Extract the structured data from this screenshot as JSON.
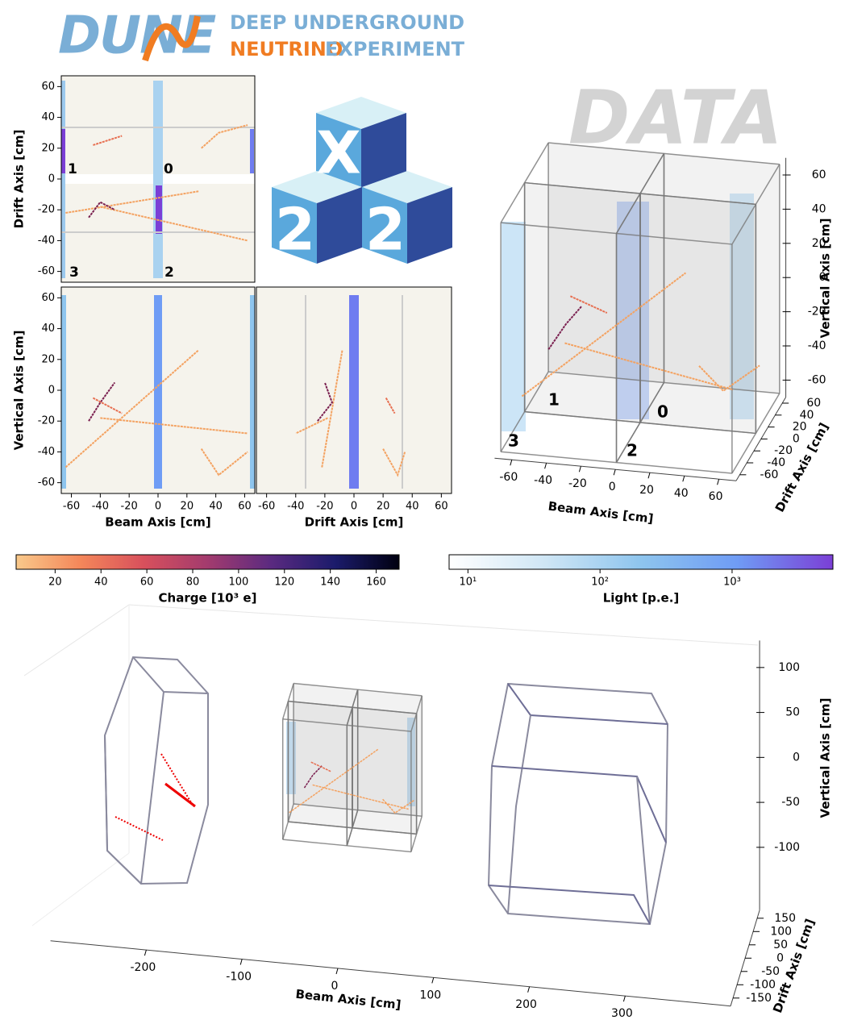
{
  "header": {
    "logo": "DUNE",
    "line1": "DEEP UNDERGROUND",
    "line2_a": "NEUTRINO",
    "line2_b": "EXPERIMENT"
  },
  "badge": "DATA",
  "cube_labels": [
    "X",
    "2",
    "2"
  ],
  "chart_data": [
    {
      "type": "projection",
      "ylabel": "Drift Axis [cm]",
      "xlim": [
        -67,
        67
      ],
      "ylim": [
        -67,
        67
      ],
      "yticks": [
        -60,
        -40,
        -20,
        0,
        20,
        40,
        60
      ],
      "module_labels": [
        "1",
        "0",
        "3",
        "2"
      ],
      "tracks": [
        {
          "color": "#f4a261",
          "x": [
            -64,
            28
          ],
          "y": [
            -22,
            -8
          ]
        },
        {
          "color": "#f4a261",
          "x": [
            -40,
            62
          ],
          "y": [
            -18,
            -40
          ]
        },
        {
          "color": "#f4a261",
          "x": [
            30,
            42,
            62
          ],
          "y": [
            20,
            30,
            35
          ]
        },
        {
          "color": "#7a1f4f",
          "x": [
            -48,
            -40,
            -30
          ],
          "y": [
            -25,
            -15,
            -20
          ]
        },
        {
          "color": "#e76f51",
          "x": [
            -45,
            -25
          ],
          "y": [
            22,
            28
          ]
        }
      ]
    },
    {
      "type": "projection",
      "xlabel": "Beam Axis [cm]",
      "ylabel": "Vertical Axis [cm]",
      "xlim": [
        -67,
        67
      ],
      "ylim": [
        -67,
        67
      ],
      "xticks": [
        -60,
        -40,
        -20,
        0,
        20,
        40,
        60
      ],
      "yticks": [
        -60,
        -40,
        -20,
        0,
        20,
        40,
        60
      ],
      "tracks": [
        {
          "color": "#f4a261",
          "x": [
            -64,
            28
          ],
          "y": [
            -50,
            26
          ]
        },
        {
          "color": "#f4a261",
          "x": [
            -40,
            62
          ],
          "y": [
            -18,
            -28
          ]
        },
        {
          "color": "#f4a261",
          "x": [
            30,
            42,
            62
          ],
          "y": [
            -38,
            -55,
            -40
          ]
        },
        {
          "color": "#7a1f4f",
          "x": [
            -48,
            -40,
            -30
          ],
          "y": [
            -20,
            -8,
            5
          ]
        },
        {
          "color": "#e76f51",
          "x": [
            -45,
            -25
          ],
          "y": [
            -5,
            -15
          ]
        }
      ]
    },
    {
      "type": "projection",
      "xlabel": "Drift Axis [cm]",
      "xlim": [
        -67,
        67
      ],
      "ylim": [
        -67,
        67
      ],
      "xticks": [
        -60,
        -40,
        -20,
        0,
        20,
        40,
        60
      ],
      "tracks": [
        {
          "color": "#f4a261",
          "x": [
            -22,
            -8
          ],
          "y": [
            -50,
            26
          ]
        },
        {
          "color": "#f4a261",
          "x": [
            -18,
            -40
          ],
          "y": [
            -18,
            -28
          ]
        },
        {
          "color": "#f4a261",
          "x": [
            20,
            30,
            35
          ],
          "y": [
            -38,
            -55,
            -40
          ]
        },
        {
          "color": "#7a1f4f",
          "x": [
            -25,
            -15,
            -20
          ],
          "y": [
            -20,
            -8,
            5
          ]
        },
        {
          "color": "#e76f51",
          "x": [
            22,
            28
          ],
          "y": [
            -5,
            -15
          ]
        }
      ]
    },
    {
      "type": "scatter3d",
      "xlabel": "Beam Axis [cm]",
      "ylabel": "Drift Axis [cm]",
      "zlabel": "Vertical Axis [cm]",
      "xlim": [
        -70,
        70
      ],
      "ylim": [
        -70,
        70
      ],
      "zlim": [
        -70,
        70
      ],
      "xticks": [
        -60,
        -40,
        -20,
        0,
        20,
        40,
        60
      ],
      "yticks": [
        -60,
        -40,
        -20,
        0,
        20,
        40,
        60
      ],
      "zticks": [
        -60,
        -40,
        -20,
        0,
        20,
        40,
        60
      ],
      "module_labels": [
        "1",
        "0",
        "3",
        "2"
      ],
      "tracks": [
        {
          "color": "#f4a261",
          "x": [
            -64,
            28
          ],
          "y": [
            -22,
            -8
          ],
          "z": [
            -50,
            26
          ]
        },
        {
          "color": "#f4a261",
          "x": [
            -40,
            62
          ],
          "y": [
            -18,
            -40
          ],
          "z": [
            -18,
            -28
          ]
        },
        {
          "color": "#f4a261",
          "x": [
            30,
            42,
            62
          ],
          "y": [
            20,
            30,
            35
          ],
          "z": [
            -38,
            -55,
            -40
          ]
        },
        {
          "color": "#7a1f4f",
          "x": [
            -48,
            -40,
            -30
          ],
          "y": [
            -25,
            -15,
            -20
          ],
          "z": [
            -20,
            -8,
            5
          ]
        },
        {
          "color": "#e76f51",
          "x": [
            -45,
            -25
          ],
          "y": [
            22,
            28
          ],
          "z": [
            -5,
            -15
          ]
        }
      ]
    },
    {
      "type": "colorbar",
      "label": "Charge [10³ e]",
      "xlim": [
        3,
        170
      ],
      "xticks": [
        20,
        40,
        60,
        80,
        100,
        120,
        140,
        160
      ],
      "colors": [
        "#f9c98b",
        "#f4875a",
        "#d8505c",
        "#a33b6e",
        "#5a2a80",
        "#1b1b6b",
        "#000010"
      ]
    },
    {
      "type": "colorbar",
      "label": "Light [p.e.]",
      "log": true,
      "xlim": [
        7.2,
        5800
      ],
      "xticks": [
        {
          "value": 10,
          "label": "10¹"
        },
        {
          "value": 100,
          "label": "10²"
        },
        {
          "value": 1000,
          "label": "10³"
        }
      ],
      "colors": [
        "#ffffff",
        "#cfe6f5",
        "#8ec5ee",
        "#6f9cf5",
        "#7b3fd6"
      ]
    },
    {
      "type": "scatter3d",
      "xlabel": "Beam Axis [cm]",
      "ylabel": "Drift Axis [cm]",
      "zlabel": "Vertical Axis [cm]",
      "xlim": [
        -300,
        410
      ],
      "ylim": [
        -180,
        180
      ],
      "zlim": [
        -170,
        130
      ],
      "xticks": [
        -200,
        -100,
        0,
        100,
        200,
        300
      ],
      "yticks": [
        -150,
        -100,
        -50,
        0,
        50,
        100,
        150
      ],
      "zticks": [
        -100,
        -50,
        0,
        50,
        100
      ],
      "tracks": [
        {
          "color": "#f4a261",
          "x": [
            -64,
            28
          ],
          "y": [
            -22,
            -8
          ],
          "z": [
            -50,
            26
          ]
        },
        {
          "color": "#f4a261",
          "x": [
            -40,
            62
          ],
          "y": [
            -18,
            -40
          ],
          "z": [
            -18,
            -28
          ]
        },
        {
          "color": "#f4a261",
          "x": [
            30,
            42,
            62
          ],
          "y": [
            20,
            30,
            35
          ],
          "z": [
            -38,
            -55,
            -40
          ]
        },
        {
          "color": "#7a1f4f",
          "x": [
            -48,
            -40,
            -30
          ],
          "y": [
            -25,
            -15,
            -20
          ],
          "z": [
            -20,
            -8,
            5
          ]
        },
        {
          "color": "#e76f51",
          "x": [
            -45,
            -25
          ],
          "y": [
            22,
            28
          ],
          "z": [
            -5,
            -15
          ]
        }
      ]
    }
  ]
}
